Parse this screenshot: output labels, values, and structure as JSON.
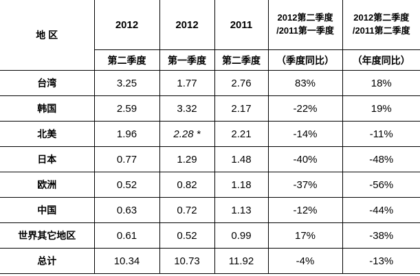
{
  "chart_data": {
    "type": "table",
    "region_header": "地 区",
    "columns": [
      {
        "line1": "2012",
        "line2": "",
        "sub": "第二季度"
      },
      {
        "line1": "2012",
        "line2": "",
        "sub": "第一季度"
      },
      {
        "line1": "2011",
        "line2": "",
        "sub": "第二季度"
      },
      {
        "line1": "2012第二季度",
        "line2": "/2011第一季度",
        "sub": "（季度同比）"
      },
      {
        "line1": "2012第二季度",
        "line2": "/2011第二季度",
        "sub": "（年度同比）"
      }
    ],
    "rows": [
      {
        "label": "台湾",
        "values": [
          "3.25",
          "1.77",
          "2.76",
          "83%",
          "18%"
        ]
      },
      {
        "label": "韩国",
        "values": [
          "2.59",
          "3.32",
          "2.17",
          "-22%",
          "19%"
        ]
      },
      {
        "label": "北美",
        "values": [
          "1.96",
          "2.28 *",
          "2.21",
          "-14%",
          "-11%"
        ]
      },
      {
        "label": "日本",
        "values": [
          "0.77",
          "1.29",
          "1.48",
          "-40%",
          "-48%"
        ]
      },
      {
        "label": "欧洲",
        "values": [
          "0.52",
          "0.82",
          "1.18",
          "-37%",
          "-56%"
        ]
      },
      {
        "label": "中国",
        "values": [
          "0.63",
          "0.72",
          "1.13",
          "-12%",
          "-44%"
        ]
      },
      {
        "label": "世界其它地区",
        "values": [
          "0.61",
          "0.52",
          "0.99",
          "17%",
          "-38%"
        ]
      },
      {
        "label": "总计",
        "values": [
          "10.34",
          "10.73",
          "11.92",
          "-4%",
          "-13%"
        ]
      }
    ]
  }
}
